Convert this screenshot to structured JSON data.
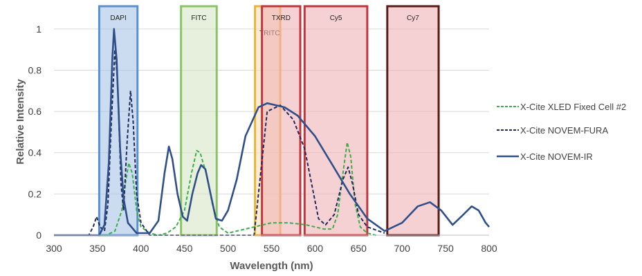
{
  "chart_data": {
    "type": "line",
    "xlabel": "Wavelength (nm)",
    "ylabel": "Relative Intensity",
    "xlim": [
      300,
      800
    ],
    "ylim": [
      0,
      1.1
    ],
    "x_ticks": [
      "300",
      "350",
      "400",
      "450",
      "500",
      "550",
      "600",
      "650",
      "700",
      "750",
      "800"
    ],
    "y_ticks": [
      "0",
      "0.2",
      "0.4",
      "0.6",
      "0.8",
      "1"
    ],
    "grid": "horizontal",
    "legend_position": "right",
    "filter_bands": [
      {
        "label": "DAPI",
        "x_min": 352,
        "x_max": 396,
        "fill": "#a8c3e6",
        "stroke": "#5b8fd0"
      },
      {
        "label": "FITC",
        "x_min": 446,
        "x_max": 487,
        "fill": "#d7e6c5",
        "stroke": "#8bc466"
      },
      {
        "label": "TRITC",
        "x_min": 531,
        "x_max": 560,
        "fill": "#f8e0b8",
        "stroke": "#f2b233"
      },
      {
        "label": "TXRD",
        "x_min": 539,
        "x_max": 583,
        "fill": "#f0b3b6",
        "stroke": "#c0363c"
      },
      {
        "label": "Cy5",
        "x_min": 588,
        "x_max": 660,
        "fill": "#f0b3b6",
        "stroke": "#c0363c"
      },
      {
        "label": "Cy7",
        "x_min": 683,
        "x_max": 742,
        "fill": "#f0b3b6",
        "stroke": "#5a1a1a"
      }
    ],
    "series": [
      {
        "name": "X-Cite XLED Fixed Cell #2",
        "color": "#3aae49",
        "style": "dashed",
        "points": [
          [
            300,
            0
          ],
          [
            360,
            0
          ],
          [
            370,
            0.02
          ],
          [
            378,
            0.12
          ],
          [
            382,
            0.25
          ],
          [
            386,
            0.35
          ],
          [
            390,
            0.3
          ],
          [
            395,
            0.12
          ],
          [
            400,
            0.04
          ],
          [
            410,
            0.01
          ],
          [
            420,
            0.0
          ],
          [
            430,
            0.01
          ],
          [
            440,
            0.04
          ],
          [
            450,
            0.12
          ],
          [
            458,
            0.3
          ],
          [
            464,
            0.41
          ],
          [
            468,
            0.4
          ],
          [
            475,
            0.3
          ],
          [
            482,
            0.15
          ],
          [
            490,
            0.04
          ],
          [
            500,
            0.01
          ],
          [
            510,
            0.02
          ],
          [
            530,
            0.04
          ],
          [
            550,
            0.06
          ],
          [
            570,
            0.06
          ],
          [
            590,
            0.05
          ],
          [
            610,
            0.03
          ],
          [
            620,
            0.03
          ],
          [
            626,
            0.1
          ],
          [
            632,
            0.3
          ],
          [
            637,
            0.45
          ],
          [
            641,
            0.38
          ],
          [
            646,
            0.15
          ],
          [
            652,
            0.04
          ],
          [
            660,
            0.01
          ],
          [
            670,
            0.0
          ]
        ]
      },
      {
        "name": "X-Cite NOVEM-FURA",
        "color": "#1f2a5c",
        "style": "dashed",
        "points": [
          [
            300,
            0
          ],
          [
            340,
            0
          ],
          [
            345,
            0.04
          ],
          [
            349,
            0.09
          ],
          [
            353,
            0.04
          ],
          [
            358,
            0.02
          ],
          [
            362,
            0.15
          ],
          [
            366,
            0.55
          ],
          [
            370,
            0.9
          ],
          [
            373,
            0.75
          ],
          [
            377,
            0.25
          ],
          [
            380,
            0.12
          ],
          [
            384,
            0.45
          ],
          [
            388,
            0.7
          ],
          [
            391,
            0.55
          ],
          [
            395,
            0.2
          ],
          [
            400,
            0.06
          ],
          [
            405,
            0.03
          ],
          [
            410,
            0
          ],
          [
            530,
            0
          ],
          [
            545,
            0.6
          ],
          [
            560,
            0.63
          ],
          [
            575,
            0.56
          ],
          [
            588,
            0.42
          ],
          [
            596,
            0.25
          ],
          [
            604,
            0.08
          ],
          [
            612,
            0.05
          ],
          [
            622,
            0.1
          ],
          [
            632,
            0.27
          ],
          [
            638,
            0.33
          ],
          [
            643,
            0.25
          ],
          [
            650,
            0.1
          ],
          [
            660,
            0.04
          ],
          [
            680,
            0.01
          ]
        ]
      },
      {
        "name": "X-Cite NOVEM-IR",
        "color": "#2f4f8a",
        "style": "solid",
        "points": [
          [
            300,
            0
          ],
          [
            352,
            0
          ],
          [
            358,
            0.05
          ],
          [
            363,
            0.35
          ],
          [
            367,
            0.85
          ],
          [
            369,
            1.0
          ],
          [
            372,
            0.85
          ],
          [
            376,
            0.42
          ],
          [
            380,
            0.18
          ],
          [
            385,
            0.06
          ],
          [
            395,
            0.01
          ],
          [
            410,
            0.01
          ],
          [
            420,
            0.07
          ],
          [
            427,
            0.3
          ],
          [
            432,
            0.43
          ],
          [
            436,
            0.37
          ],
          [
            442,
            0.2
          ],
          [
            448,
            0.09
          ],
          [
            453,
            0.07
          ],
          [
            459,
            0.2
          ],
          [
            465,
            0.3
          ],
          [
            469,
            0.34
          ],
          [
            474,
            0.32
          ],
          [
            480,
            0.2
          ],
          [
            486,
            0.08
          ],
          [
            493,
            0.07
          ],
          [
            500,
            0.12
          ],
          [
            510,
            0.27
          ],
          [
            520,
            0.48
          ],
          [
            535,
            0.62
          ],
          [
            545,
            0.64
          ],
          [
            555,
            0.63
          ],
          [
            565,
            0.62
          ],
          [
            580,
            0.58
          ],
          [
            600,
            0.48
          ],
          [
            620,
            0.34
          ],
          [
            640,
            0.2
          ],
          [
            660,
            0.08
          ],
          [
            670,
            0.05
          ],
          [
            680,
            0.02
          ],
          [
            700,
            0.06
          ],
          [
            718,
            0.14
          ],
          [
            732,
            0.16
          ],
          [
            745,
            0.12
          ],
          [
            758,
            0.05
          ],
          [
            768,
            0.09
          ],
          [
            780,
            0.14
          ],
          [
            788,
            0.12
          ],
          [
            796,
            0.06
          ],
          [
            800,
            0.04
          ]
        ]
      }
    ]
  }
}
